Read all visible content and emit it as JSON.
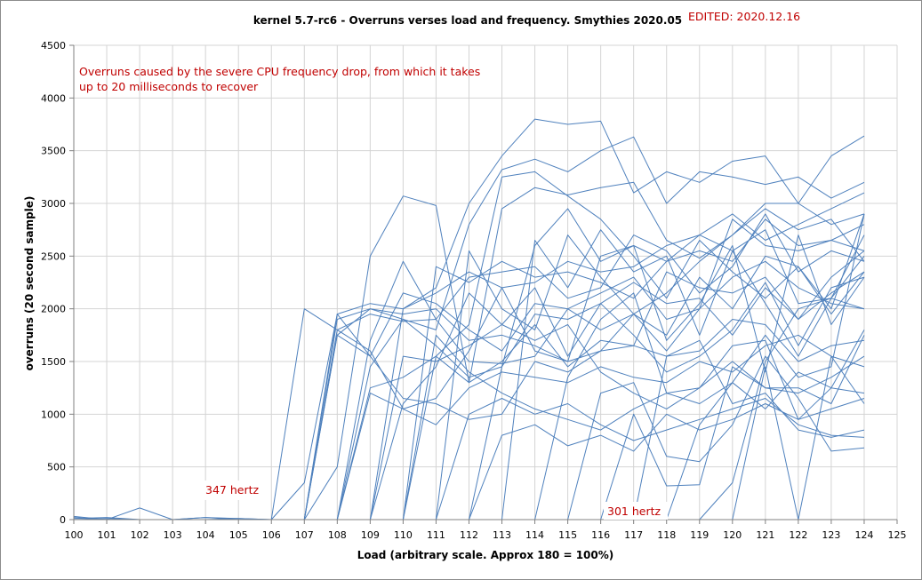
{
  "chart_data": {
    "type": "line",
    "title": "kernel 5.7-rc6 - Overruns verses load and frequency. Smythies 2020.05",
    "xlabel": "Load (arbitrary scale. Approx 180 = 100%)",
    "ylabel": "overruns (20 second sample)",
    "xlim": [
      100,
      125
    ],
    "ylim": [
      0,
      4500
    ],
    "x_ticks": [
      "100",
      "101",
      "102",
      "103",
      "104",
      "105",
      "106",
      "107",
      "108",
      "109",
      "110",
      "111",
      "112",
      "113",
      "114",
      "115",
      "116",
      "117",
      "118",
      "119",
      "120",
      "121",
      "122",
      "123",
      "124",
      "125"
    ],
    "y_ticks": [
      "0",
      "500",
      "1000",
      "1500",
      "2000",
      "2500",
      "3000",
      "3500",
      "4000",
      "4500"
    ],
    "grid": true,
    "annotations": {
      "edited": "EDITED: 2020.12.16",
      "note_line1": "Overruns caused by the severe CPU frequency drop, from which it takes",
      "note_line2": "up to 20 milliseconds to recover",
      "hz347": "347 hertz",
      "hz301": "301 hertz"
    },
    "x": [
      100,
      101,
      102,
      103,
      104,
      105,
      106,
      107,
      108,
      109,
      110,
      111,
      112,
      113,
      114,
      115,
      116,
      117,
      118,
      119,
      120,
      121,
      122,
      123,
      124
    ],
    "series": [
      {
        "values": [
          30,
          0,
          110,
          0,
          20,
          10,
          0,
          2000,
          1800,
          1950,
          1880,
          1900,
          1500,
          1480,
          1550,
          2000,
          1800,
          1950,
          1750,
          2300,
          2000,
          2500,
          2400,
          2000,
          2900
        ]
      },
      {
        "values": [
          10,
          20,
          0,
          0,
          0,
          0,
          0,
          350,
          1950,
          2050,
          2000,
          2200,
          3000,
          3450,
          3800,
          3750,
          3780,
          3100,
          3300,
          3200,
          3400,
          3450,
          3000,
          3450,
          3640
        ]
      },
      {
        "values": [
          0,
          0,
          0,
          0,
          20,
          0,
          0,
          0,
          1750,
          2000,
          1900,
          1800,
          2800,
          3320,
          3420,
          3300,
          3500,
          3630,
          3000,
          3300,
          3250,
          3180,
          3250,
          3050,
          3200
        ]
      },
      {
        "values": [
          20,
          0,
          0,
          0,
          0,
          10,
          0,
          0,
          500,
          2500,
          3070,
          2980,
          1300,
          2950,
          3150,
          3080,
          3150,
          3200,
          2650,
          2480,
          2700,
          3000,
          3000,
          2800,
          2900
        ]
      },
      {
        "values": [
          0,
          0,
          0,
          0,
          0,
          0,
          0,
          0,
          1800,
          1600,
          1050,
          1150,
          1600,
          2200,
          1600,
          1500,
          2500,
          2600,
          2450,
          2700,
          2550,
          2750,
          2050,
          2100,
          2500
        ]
      },
      {
        "values": [
          0,
          10,
          0,
          0,
          0,
          0,
          0,
          0,
          0,
          1700,
          2450,
          1900,
          2300,
          2350,
          2400,
          2100,
          2200,
          2700,
          2550,
          2150,
          2400,
          2900,
          2350,
          2550,
          2450
        ]
      },
      {
        "values": [
          0,
          0,
          0,
          0,
          0,
          0,
          0,
          0,
          1950,
          1550,
          1150,
          1100,
          950,
          1000,
          1500,
          1400,
          1600,
          1650,
          2350,
          2200,
          2150,
          2300,
          1900,
          2300,
          2550
        ]
      },
      {
        "values": [
          0,
          0,
          0,
          0,
          0,
          0,
          0,
          0,
          0,
          0,
          1100,
          1450,
          2150,
          1850,
          2200,
          1550,
          2050,
          1750,
          1400,
          1550,
          1800,
          2250,
          1650,
          2200,
          2300
        ]
      },
      {
        "values": [
          0,
          0,
          0,
          0,
          0,
          0,
          0,
          0,
          0,
          0,
          0,
          1550,
          1850,
          3250,
          3300,
          3070,
          2850,
          2500,
          2100,
          2650,
          2350,
          2100,
          2400,
          1950,
          2350
        ]
      },
      {
        "values": [
          0,
          0,
          0,
          0,
          0,
          0,
          0,
          0,
          0,
          0,
          0,
          0,
          2550,
          2000,
          1800,
          2700,
          2300,
          1950,
          1600,
          2000,
          2850,
          2600,
          2550,
          2650,
          2550
        ]
      },
      {
        "values": [
          0,
          0,
          0,
          0,
          0,
          0,
          0,
          0,
          0,
          0,
          0,
          0,
          0,
          1450,
          2600,
          2950,
          2450,
          2600,
          1700,
          2050,
          2600,
          1400,
          2700,
          1850,
          2300
        ]
      },
      {
        "values": [
          0,
          0,
          0,
          0,
          0,
          0,
          0,
          0,
          0,
          0,
          0,
          0,
          0,
          0,
          2650,
          2200,
          2750,
          2350,
          2500,
          1750,
          2550,
          2050,
          1550,
          2100,
          2000
        ]
      },
      {
        "values": [
          0,
          0,
          0,
          0,
          0,
          0,
          0,
          0,
          0,
          0,
          0,
          0,
          0,
          0,
          0,
          1350,
          1900,
          2150,
          1200,
          1250,
          1650,
          1700,
          950,
          1250,
          1800
        ]
      },
      {
        "values": [
          0,
          0,
          0,
          0,
          0,
          0,
          0,
          0,
          0,
          0,
          0,
          0,
          0,
          0,
          0,
          0,
          1200,
          1300,
          600,
          550,
          900,
          1550,
          1150,
          650,
          680
        ]
      },
      {
        "values": [
          0,
          0,
          0,
          0,
          0,
          0,
          0,
          0,
          0,
          0,
          0,
          0,
          0,
          0,
          0,
          0,
          0,
          1000,
          320,
          330,
          1450,
          1250,
          1250,
          1100,
          1750
        ]
      },
      {
        "values": [
          0,
          0,
          0,
          0,
          0,
          0,
          0,
          0,
          0,
          0,
          0,
          0,
          0,
          0,
          0,
          0,
          0,
          0,
          1550,
          1700,
          1100,
          1200,
          850,
          780,
          850
        ]
      },
      {
        "values": [
          0,
          0,
          0,
          0,
          0,
          0,
          0,
          0,
          0,
          0,
          0,
          0,
          0,
          0,
          0,
          0,
          0,
          0,
          0,
          900,
          1300,
          1750,
          1350,
          1450,
          2900
        ]
      },
      {
        "values": [
          0,
          0,
          0,
          0,
          0,
          0,
          0,
          0,
          0,
          0,
          0,
          0,
          0,
          0,
          0,
          0,
          0,
          0,
          0,
          0,
          350,
          1500,
          2000,
          2100,
          2700
        ]
      },
      {
        "values": [
          0,
          0,
          0,
          0,
          0,
          0,
          0,
          0,
          0,
          0,
          0,
          0,
          0,
          0,
          0,
          0,
          0,
          0,
          0,
          0,
          0,
          1450,
          0,
          1550,
          1100
        ]
      },
      {
        "values": [
          0,
          0,
          0,
          0,
          0,
          0,
          0,
          0,
          1900,
          2000,
          1950,
          2000,
          1700,
          1750,
          1650,
          1500,
          1600,
          1950,
          2150,
          2450,
          2700,
          2950,
          2750,
          2850,
          2450
        ]
      },
      {
        "values": [
          0,
          0,
          0,
          0,
          0,
          0,
          0,
          0,
          1750,
          1550,
          2150,
          2050,
          1800,
          1600,
          2050,
          2000,
          2150,
          2300,
          1900,
          2000,
          2300,
          2450,
          2200,
          2050,
          2000
        ]
      },
      {
        "values": [
          0,
          0,
          0,
          0,
          0,
          0,
          0,
          0,
          0,
          1450,
          1900,
          1650,
          1350,
          1450,
          1950,
          1900,
          2050,
          2250,
          2050,
          2100,
          1750,
          2200,
          1900,
          2150,
          2350
        ]
      },
      {
        "values": [
          0,
          0,
          0,
          0,
          0,
          0,
          0,
          0,
          0,
          1250,
          1350,
          1550,
          1300,
          1500,
          1850,
          1450,
          1700,
          1650,
          1550,
          1600,
          1900,
          1850,
          1500,
          1650,
          1700
        ]
      },
      {
        "values": [
          0,
          0,
          0,
          0,
          0,
          0,
          0,
          0,
          0,
          1200,
          1050,
          900,
          1250,
          1400,
          1350,
          1300,
          1450,
          1350,
          1300,
          1500,
          1400,
          1650,
          1750,
          1550,
          1450
        ]
      },
      {
        "values": [
          0,
          0,
          0,
          0,
          0,
          0,
          0,
          0,
          0,
          0,
          1550,
          1500,
          1650,
          1850,
          1700,
          1850,
          1400,
          1200,
          1050,
          1250,
          1500,
          1250,
          1200,
          1350,
          1550
        ]
      },
      {
        "values": [
          0,
          0,
          0,
          0,
          0,
          0,
          0,
          0,
          0,
          0,
          0,
          1750,
          1400,
          1200,
          1050,
          950,
          850,
          1050,
          1200,
          1100,
          1300,
          1050,
          1400,
          1250,
          1200
        ]
      },
      {
        "values": [
          0,
          0,
          0,
          0,
          0,
          0,
          0,
          0,
          0,
          0,
          0,
          0,
          1000,
          1150,
          1000,
          1100,
          900,
          750,
          850,
          950,
          1050,
          1150,
          900,
          800,
          780
        ]
      },
      {
        "values": [
          0,
          0,
          0,
          0,
          0,
          0,
          0,
          0,
          0,
          0,
          0,
          0,
          0,
          800,
          900,
          700,
          800,
          650,
          1000,
          850,
          950,
          1100,
          950,
          1050,
          1150
        ]
      },
      {
        "values": [
          0,
          0,
          0,
          0,
          0,
          0,
          0,
          0,
          0,
          0,
          0,
          2400,
          2250,
          2450,
          2300,
          2350,
          2250,
          2100,
          2450,
          2550,
          2450,
          2850,
          2600,
          2650,
          2800
        ]
      },
      {
        "values": [
          0,
          0,
          0,
          0,
          0,
          0,
          0,
          0,
          0,
          0,
          2000,
          2150,
          2350,
          2200,
          2250,
          2450,
          2350,
          2400,
          2600,
          2700,
          2900,
          2650,
          2800,
          2950,
          3100
        ]
      }
    ]
  }
}
